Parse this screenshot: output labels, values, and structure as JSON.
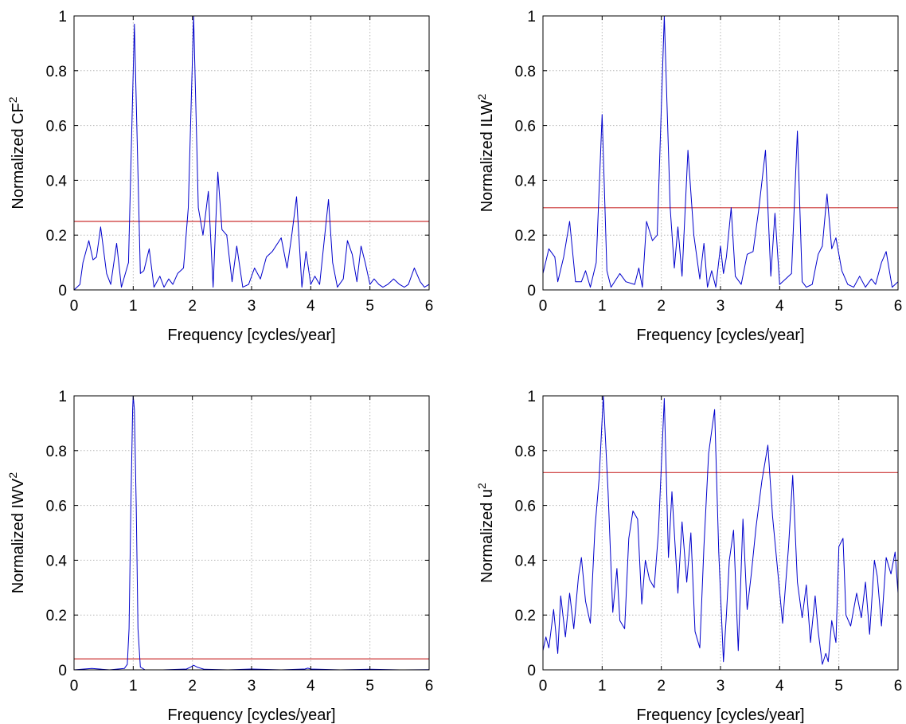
{
  "chart_data": [
    {
      "type": "line",
      "xlabel": "Frequency [cycles/year]",
      "ylabel": "Normalized CF",
      "ylabel_sup": "2",
      "xlim": [
        0,
        6
      ],
      "ylim": [
        0,
        1
      ],
      "xticks": [
        0,
        1,
        2,
        3,
        4,
        5,
        6
      ],
      "yticks": [
        0,
        0.2,
        0.4,
        0.6,
        0.8,
        1
      ],
      "xtick_labels": [
        "0",
        "1",
        "2",
        "3",
        "4",
        "5",
        "6"
      ],
      "ytick_labels": [
        "0",
        "0.2",
        "0.4",
        "0.6",
        "0.8",
        "1"
      ],
      "grid": true,
      "threshold": 0.25,
      "colors": {
        "series": "#0000cc",
        "threshold": "#cc3333"
      },
      "x": [
        0,
        0.1,
        0.15,
        0.25,
        0.32,
        0.38,
        0.45,
        0.55,
        0.62,
        0.72,
        0.8,
        0.92,
        1.02,
        1.12,
        1.18,
        1.27,
        1.35,
        1.45,
        1.52,
        1.6,
        1.67,
        1.75,
        1.85,
        1.93,
        2.02,
        2.1,
        2.18,
        2.27,
        2.35,
        2.43,
        2.5,
        2.58,
        2.67,
        2.75,
        2.85,
        2.95,
        3.05,
        3.15,
        3.25,
        3.35,
        3.5,
        3.6,
        3.68,
        3.76,
        3.85,
        3.92,
        4.0,
        4.07,
        4.15,
        4.3,
        4.37,
        4.45,
        4.55,
        4.62,
        4.7,
        4.78,
        4.85,
        4.92,
        5.0,
        5.07,
        5.15,
        5.22,
        5.3,
        5.4,
        5.5,
        5.58,
        5.65,
        5.75,
        5.85,
        5.92,
        6.0
      ],
      "y": [
        0.0,
        0.02,
        0.1,
        0.18,
        0.11,
        0.12,
        0.23,
        0.06,
        0.02,
        0.17,
        0.01,
        0.1,
        0.97,
        0.06,
        0.07,
        0.15,
        0.01,
        0.05,
        0.01,
        0.04,
        0.02,
        0.06,
        0.08,
        0.3,
        1.0,
        0.3,
        0.2,
        0.36,
        0.01,
        0.43,
        0.22,
        0.2,
        0.03,
        0.16,
        0.01,
        0.02,
        0.08,
        0.04,
        0.12,
        0.14,
        0.19,
        0.08,
        0.2,
        0.34,
        0.01,
        0.14,
        0.02,
        0.05,
        0.02,
        0.33,
        0.1,
        0.01,
        0.04,
        0.18,
        0.13,
        0.03,
        0.16,
        0.1,
        0.02,
        0.04,
        0.02,
        0.01,
        0.02,
        0.04,
        0.02,
        0.01,
        0.02,
        0.08,
        0.03,
        0.01,
        0.02
      ]
    },
    {
      "type": "line",
      "xlabel": "Frequency [cycles/year]",
      "ylabel": "Normalized ILW",
      "ylabel_sup": "2",
      "xlim": [
        0,
        6
      ],
      "ylim": [
        0,
        1
      ],
      "xticks": [
        0,
        1,
        2,
        3,
        4,
        5,
        6
      ],
      "yticks": [
        0,
        0.2,
        0.4,
        0.6,
        0.8,
        1
      ],
      "xtick_labels": [
        "0",
        "1",
        "2",
        "3",
        "4",
        "5",
        "6"
      ],
      "ytick_labels": [
        "0",
        "0.2",
        "0.4",
        "0.6",
        "0.8",
        "1"
      ],
      "grid": true,
      "threshold": 0.3,
      "colors": {
        "series": "#0000cc",
        "threshold": "#cc3333"
      },
      "x": [
        0,
        0.1,
        0.2,
        0.25,
        0.35,
        0.45,
        0.55,
        0.65,
        0.72,
        0.8,
        0.9,
        1.0,
        1.08,
        1.15,
        1.3,
        1.4,
        1.55,
        1.62,
        1.68,
        1.75,
        1.85,
        1.93,
        2.05,
        2.15,
        2.22,
        2.28,
        2.35,
        2.45,
        2.55,
        2.65,
        2.72,
        2.78,
        2.85,
        2.92,
        3.0,
        3.05,
        3.1,
        3.18,
        3.25,
        3.35,
        3.45,
        3.55,
        3.65,
        3.76,
        3.85,
        3.92,
        4.0,
        4.1,
        4.2,
        4.3,
        4.38,
        4.45,
        4.55,
        4.65,
        4.72,
        4.8,
        4.88,
        4.95,
        5.05,
        5.15,
        5.25,
        5.35,
        5.45,
        5.55,
        5.62,
        5.72,
        5.8,
        5.9,
        6.0
      ],
      "y": [
        0.06,
        0.15,
        0.12,
        0.03,
        0.12,
        0.25,
        0.03,
        0.03,
        0.07,
        0.01,
        0.1,
        0.64,
        0.07,
        0.01,
        0.06,
        0.03,
        0.02,
        0.08,
        0.01,
        0.25,
        0.18,
        0.2,
        1.0,
        0.3,
        0.08,
        0.23,
        0.05,
        0.51,
        0.2,
        0.04,
        0.17,
        0.01,
        0.07,
        0.01,
        0.16,
        0.06,
        0.12,
        0.3,
        0.05,
        0.02,
        0.13,
        0.14,
        0.3,
        0.51,
        0.05,
        0.28,
        0.02,
        0.04,
        0.06,
        0.58,
        0.03,
        0.01,
        0.02,
        0.13,
        0.16,
        0.35,
        0.15,
        0.19,
        0.07,
        0.02,
        0.01,
        0.05,
        0.01,
        0.04,
        0.02,
        0.1,
        0.14,
        0.01,
        0.03
      ]
    },
    {
      "type": "line",
      "xlabel": "Frequency [cycles/year]",
      "ylabel": "Normalized IWV",
      "ylabel_sup": "2",
      "xlim": [
        0,
        6
      ],
      "ylim": [
        0,
        1
      ],
      "xticks": [
        0,
        1,
        2,
        3,
        4,
        5,
        6
      ],
      "yticks": [
        0,
        0.2,
        0.4,
        0.6,
        0.8,
        1
      ],
      "xtick_labels": [
        "0",
        "1",
        "2",
        "3",
        "4",
        "5",
        "6"
      ],
      "ytick_labels": [
        "0",
        "0.2",
        "0.4",
        "0.6",
        "0.8",
        "1"
      ],
      "grid": true,
      "threshold": 0.04,
      "colors": {
        "series": "#0000cc",
        "threshold": "#cc3333"
      },
      "x": [
        0,
        0.3,
        0.6,
        0.85,
        0.9,
        0.93,
        0.96,
        0.99,
        1.0,
        1.02,
        1.05,
        1.08,
        1.12,
        1.2,
        1.5,
        1.9,
        1.97,
        2.02,
        2.08,
        2.2,
        2.6,
        3.0,
        3.5,
        3.9,
        3.95,
        4.0,
        4.5,
        5.0,
        5.5,
        6.0
      ],
      "y": [
        0.0,
        0.005,
        0.0,
        0.005,
        0.02,
        0.15,
        0.6,
        0.95,
        1.0,
        0.95,
        0.6,
        0.15,
        0.01,
        0.0,
        0.0,
        0.003,
        0.01,
        0.017,
        0.01,
        0.002,
        0.0,
        0.003,
        0.0,
        0.003,
        0.006,
        0.003,
        0.0,
        0.002,
        0.0,
        0.001
      ]
    },
    {
      "type": "line",
      "xlabel": "Frequency [cycles/year]",
      "ylabel": "Normalized u",
      "ylabel_sup": "2",
      "xlim": [
        0,
        6
      ],
      "ylim": [
        0,
        1
      ],
      "xticks": [
        0,
        1,
        2,
        3,
        4,
        5,
        6
      ],
      "yticks": [
        0,
        0.2,
        0.4,
        0.6,
        0.8,
        1
      ],
      "xtick_labels": [
        "0",
        "1",
        "2",
        "3",
        "4",
        "5",
        "6"
      ],
      "ytick_labels": [
        "0",
        "0.2",
        "0.4",
        "0.6",
        "0.8",
        "1"
      ],
      "grid": true,
      "threshold": 0.72,
      "colors": {
        "series": "#0000cc",
        "threshold": "#cc3333"
      },
      "x": [
        0,
        0.05,
        0.1,
        0.18,
        0.25,
        0.3,
        0.38,
        0.45,
        0.52,
        0.6,
        0.65,
        0.72,
        0.8,
        0.88,
        0.95,
        1.02,
        1.1,
        1.18,
        1.25,
        1.3,
        1.38,
        1.45,
        1.52,
        1.6,
        1.67,
        1.73,
        1.8,
        1.88,
        1.95,
        2.05,
        2.12,
        2.18,
        2.28,
        2.35,
        2.43,
        2.5,
        2.57,
        2.65,
        2.72,
        2.8,
        2.9,
        2.97,
        3.05,
        3.1,
        3.15,
        3.22,
        3.3,
        3.38,
        3.45,
        3.52,
        3.6,
        3.7,
        3.8,
        3.88,
        3.95,
        4.05,
        4.15,
        4.22,
        4.3,
        4.38,
        4.45,
        4.52,
        4.6,
        4.65,
        4.72,
        4.78,
        4.82,
        4.88,
        4.95,
        5.0,
        5.07,
        5.12,
        5.2,
        5.3,
        5.38,
        5.45,
        5.52,
        5.6,
        5.65,
        5.72,
        5.8,
        5.88,
        5.95,
        6.0
      ],
      "y": [
        0.07,
        0.12,
        0.08,
        0.22,
        0.06,
        0.27,
        0.12,
        0.28,
        0.15,
        0.34,
        0.41,
        0.25,
        0.17,
        0.52,
        0.7,
        1.0,
        0.65,
        0.21,
        0.37,
        0.18,
        0.15,
        0.48,
        0.58,
        0.55,
        0.24,
        0.4,
        0.33,
        0.3,
        0.5,
        0.99,
        0.41,
        0.65,
        0.28,
        0.54,
        0.32,
        0.5,
        0.14,
        0.08,
        0.45,
        0.79,
        0.95,
        0.43,
        0.03,
        0.2,
        0.4,
        0.51,
        0.07,
        0.55,
        0.22,
        0.35,
        0.52,
        0.69,
        0.82,
        0.56,
        0.4,
        0.17,
        0.45,
        0.71,
        0.32,
        0.19,
        0.31,
        0.1,
        0.27,
        0.14,
        0.02,
        0.06,
        0.03,
        0.18,
        0.1,
        0.45,
        0.48,
        0.2,
        0.16,
        0.28,
        0.19,
        0.32,
        0.13,
        0.4,
        0.34,
        0.16,
        0.41,
        0.35,
        0.43,
        0.28
      ]
    }
  ]
}
